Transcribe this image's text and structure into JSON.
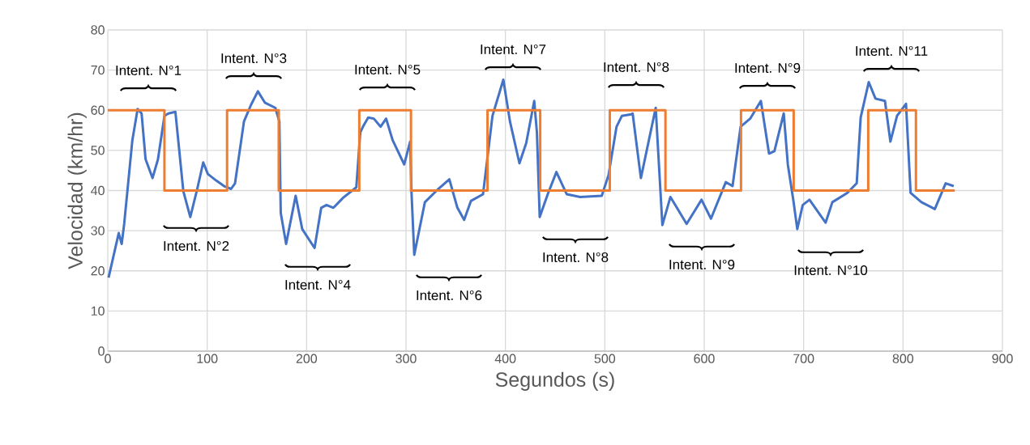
{
  "chart_data": {
    "type": "line",
    "xlabel": "Segundos (s)",
    "ylabel": "Velocidad (km/hr)",
    "xlim": [
      0,
      900
    ],
    "ylim": [
      0,
      80
    ],
    "xticks": [
      0,
      100,
      200,
      300,
      400,
      500,
      600,
      700,
      800,
      900
    ],
    "yticks": [
      0,
      10,
      20,
      30,
      40,
      50,
      60,
      70,
      80
    ],
    "grid": true,
    "marker": "none",
    "line_style": "solid",
    "series": [
      {
        "type": "line",
        "color": "#4472c4",
        "x": [
          0.8,
          11,
          14,
          16.5,
          24.7,
          30,
          34,
          38,
          45,
          50.5,
          57,
          61,
          68,
          76,
          83,
          90,
          96,
          100.7,
          109,
          117,
          124,
          128,
          137,
          144,
          151,
          158,
          168.5,
          172.6,
          174,
          179.4,
          189,
          195.6,
          208,
          214.7,
          220,
          227,
          236.3,
          250,
          254,
          256.7,
          262,
          267.6,
          274.4,
          280,
          286.6,
          298.2,
          304.2,
          305.5,
          308.3,
          319,
          331.3,
          343.6,
          351.7,
          358.5,
          365.3,
          377.5,
          387,
          397.9,
          404.6,
          414.1,
          420.9,
          429,
          431.7,
          434.5,
          442.6,
          451.3,
          461.6,
          475.2,
          496.9,
          503.7,
          511.8,
          517.2,
          526.7,
          528,
          536.3,
          551.2,
          557.9,
          566,
          582.3,
          597.3,
          606.8,
          621.7,
          628.5,
          636.6,
          646.2,
          657,
          665.2,
          670.6,
          680,
          684.1,
          689.6,
          693.6,
          699.1,
          705.9,
          722.1,
          728.9,
          743.9,
          753.4,
          757.4,
          765.5,
          772.3,
          781.8,
          787.3,
          794,
          803,
          807.6,
          818.5,
          832,
          842.9,
          851
        ],
        "values": [
          18.3,
          29.4,
          26.7,
          31.7,
          52.5,
          60.3,
          59.2,
          47.8,
          43.1,
          47.8,
          58.6,
          59.2,
          59.6,
          39.8,
          33.4,
          40.4,
          47,
          44.1,
          42.5,
          41.1,
          40.4,
          41.8,
          57.2,
          61.3,
          64.7,
          61.9,
          60.6,
          57.2,
          34.4,
          26.7,
          38.7,
          30.4,
          25.7,
          35.7,
          36.4,
          35.7,
          38.1,
          40.8,
          54.5,
          55.9,
          58.2,
          57.9,
          55.9,
          57.9,
          52.5,
          46.5,
          52.2,
          39.8,
          24,
          37.1,
          40.1,
          42.8,
          35.7,
          32.7,
          37.4,
          39.1,
          58.6,
          67.6,
          57.2,
          46.8,
          51.8,
          62.3,
          54.5,
          33.4,
          39.1,
          44.6,
          39.1,
          38.4,
          38.7,
          43.8,
          55.9,
          58.6,
          59,
          59.2,
          43.1,
          60.6,
          31.4,
          38.4,
          31.7,
          37.7,
          33,
          42.1,
          41.1,
          55.9,
          57.9,
          62.3,
          49.2,
          49.8,
          59.2,
          46.5,
          37.7,
          30.4,
          36.4,
          37.7,
          32,
          37.1,
          39.4,
          41.8,
          58.2,
          67,
          62.9,
          62.3,
          52.2,
          58.6,
          61.6,
          39.4,
          37.1,
          35.4,
          41.8,
          41.1
        ]
      },
      {
        "type": "step",
        "color": "#ed7d31",
        "x": [
          0,
          57,
          120,
          172,
          253,
          305,
          382,
          435,
          505,
          561,
          637,
          690,
          765,
          813,
          852
        ],
        "values": [
          60,
          40,
          60,
          40,
          60,
          40,
          60,
          40,
          60,
          40,
          60,
          40,
          60,
          40,
          40
        ]
      }
    ],
    "annotations": [
      "Intent. N°1",
      "Intent. N°2",
      "Intent. N°3",
      "Intent. N°4",
      "Intent. N°5",
      "Intent. N°6",
      "Intent. N°7",
      "Intent. N°8",
      "Intent. N°8",
      "Intent. N°9",
      "Intent. N°9",
      "Intent. N°10",
      "Intent. N°11"
    ]
  }
}
